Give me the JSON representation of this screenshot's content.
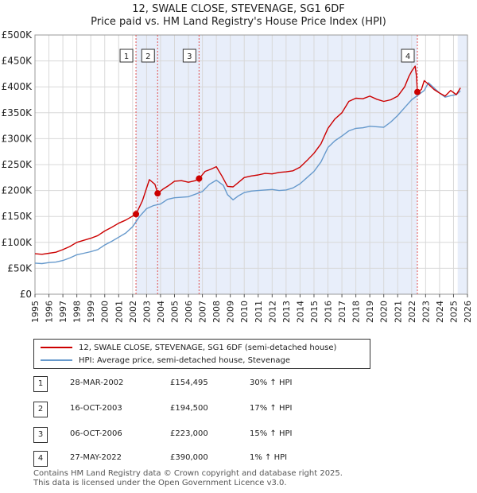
{
  "header": {
    "line1": "12, SWALE CLOSE, STEVENAGE, SG1 6DF",
    "line2": "Price paid vs. HM Land Registry's House Price Index (HPI)"
  },
  "chart_data": {
    "type": "line",
    "title": "12, SWALE CLOSE, STEVENAGE, SG1 6DF",
    "subtitle": "Price paid vs. HM Land Registry's House Price Index (HPI)",
    "xlabel": "",
    "ylabel": "",
    "xlim": [
      1995,
      2026
    ],
    "ylim": [
      0,
      500000
    ],
    "y_ticks": [
      0,
      50000,
      100000,
      150000,
      200000,
      250000,
      300000,
      350000,
      400000,
      450000,
      500000
    ],
    "y_tick_labels": [
      "£0",
      "£50K",
      "£100K",
      "£150K",
      "£200K",
      "£250K",
      "£300K",
      "£350K",
      "£400K",
      "£450K",
      "£500K"
    ],
    "x_tick_labels": [
      "1995",
      "1996",
      "1997",
      "1998",
      "1999",
      "2000",
      "2001",
      "2002",
      "2003",
      "2004",
      "2005",
      "2006",
      "2007",
      "2008",
      "2009",
      "2010",
      "2011",
      "2012",
      "2013",
      "2014",
      "2015",
      "2016",
      "2017",
      "2018",
      "2019",
      "2020",
      "2021",
      "2022",
      "2023",
      "2024",
      "2025",
      "2026"
    ],
    "grid": true,
    "colors": {
      "property": "#cc0000",
      "hpi": "#6699cc",
      "shade": "#e8eefa",
      "vline": "#e05050"
    },
    "series": [
      {
        "name": "12, SWALE CLOSE, STEVENAGE, SG1 6DF (semi-detached house)",
        "x": [
          1995.0,
          1995.5,
          1996.0,
          1996.5,
          1997.0,
          1997.5,
          1998.0,
          1998.5,
          1999.0,
          1999.5,
          2000.0,
          2000.5,
          2001.0,
          2001.5,
          2002.24,
          2002.7,
          2003.2,
          2003.6,
          2003.79,
          2004.2,
          2004.6,
          2005.0,
          2005.5,
          2006.0,
          2006.5,
          2006.76,
          2007.2,
          2007.6,
          2008.0,
          2008.4,
          2008.8,
          2009.2,
          2009.6,
          2010.0,
          2010.5,
          2011.0,
          2011.5,
          2012.0,
          2012.5,
          2013.0,
          2013.5,
          2014.0,
          2014.5,
          2015.0,
          2015.5,
          2016.0,
          2016.5,
          2017.0,
          2017.5,
          2018.0,
          2018.5,
          2019.0,
          2019.5,
          2020.0,
          2020.5,
          2021.0,
          2021.5,
          2021.8,
          2022.0,
          2022.25,
          2022.35,
          2022.41,
          2022.7,
          2022.9,
          2023.2,
          2023.6,
          2024.0,
          2024.4,
          2024.8,
          2025.2,
          2025.5
        ],
        "y": [
          78000,
          77000,
          79000,
          81000,
          86000,
          92000,
          100000,
          104000,
          108000,
          113000,
          122000,
          129000,
          137000,
          143000,
          154495,
          180000,
          221000,
          212000,
          194500,
          203000,
          210000,
          218000,
          219000,
          216000,
          219000,
          223000,
          237000,
          241000,
          246000,
          228000,
          208000,
          207000,
          216000,
          225000,
          228000,
          230000,
          233000,
          232000,
          235000,
          236000,
          238000,
          245000,
          258000,
          272000,
          290000,
          320000,
          338000,
          350000,
          372000,
          378000,
          377000,
          382000,
          376000,
          372000,
          375000,
          382000,
          400000,
          420000,
          430000,
          440000,
          420000,
          390000,
          395000,
          412000,
          405000,
          395000,
          388000,
          382000,
          393000,
          385000,
          398000
        ]
      },
      {
        "name": "HPI: Average price, semi-detached house, Stevenage",
        "x": [
          1995.0,
          1995.5,
          1996.0,
          1996.5,
          1997.0,
          1997.5,
          1998.0,
          1998.5,
          1999.0,
          1999.5,
          2000.0,
          2000.5,
          2001.0,
          2001.5,
          2002.0,
          2002.5,
          2003.0,
          2003.5,
          2004.0,
          2004.5,
          2005.0,
          2005.5,
          2006.0,
          2006.5,
          2007.0,
          2007.5,
          2008.0,
          2008.5,
          2008.8,
          2009.2,
          2009.6,
          2010.0,
          2010.5,
          2011.0,
          2011.5,
          2012.0,
          2012.5,
          2013.0,
          2013.5,
          2014.0,
          2014.5,
          2015.0,
          2015.5,
          2016.0,
          2016.5,
          2017.0,
          2017.5,
          2018.0,
          2018.5,
          2019.0,
          2019.5,
          2020.0,
          2020.5,
          2021.0,
          2021.5,
          2022.0,
          2022.5,
          2022.9,
          2023.2,
          2023.6,
          2024.0,
          2024.4,
          2024.8,
          2025.2,
          2025.5
        ],
        "y": [
          60000,
          59000,
          61000,
          62000,
          65000,
          70000,
          76000,
          79000,
          82000,
          86000,
          95000,
          102000,
          110000,
          118000,
          130000,
          150000,
          165000,
          171000,
          174000,
          183000,
          186000,
          187000,
          188000,
          193000,
          198000,
          212000,
          220000,
          210000,
          192000,
          182000,
          190000,
          196000,
          199000,
          200000,
          201000,
          202000,
          200000,
          201000,
          205000,
          213000,
          225000,
          237000,
          255000,
          283000,
          296000,
          305000,
          315000,
          320000,
          321000,
          324000,
          323000,
          322000,
          332000,
          345000,
          360000,
          375000,
          385000,
          393000,
          408000,
          398000,
          388000,
          380000,
          383000,
          385000,
          392000
        ]
      }
    ],
    "transactions": [
      {
        "id": "1",
        "x": 2002.24,
        "y": 154495
      },
      {
        "id": "2",
        "x": 2003.79,
        "y": 194500
      },
      {
        "id": "3",
        "x": 2006.76,
        "y": 223000
      },
      {
        "id": "4",
        "x": 2022.41,
        "y": 390000
      }
    ],
    "shaded_ranges": [
      [
        2002.24,
        2022.41
      ],
      [
        2025.3,
        2026.0
      ]
    ]
  },
  "legend": {
    "property_label": "12, SWALE CLOSE, STEVENAGE, SG1 6DF (semi-detached house)",
    "hpi_label": "HPI: Average price, semi-detached house, Stevenage"
  },
  "table": {
    "rows": [
      {
        "id": "1",
        "date": "28-MAR-2002",
        "price": "£154,495",
        "hpi": "30% ↑ HPI"
      },
      {
        "id": "2",
        "date": "16-OCT-2003",
        "price": "£194,500",
        "hpi": "17% ↑ HPI"
      },
      {
        "id": "3",
        "date": "06-OCT-2006",
        "price": "£223,000",
        "hpi": "15% ↑ HPI"
      },
      {
        "id": "4",
        "date": "27-MAY-2022",
        "price": "£390,000",
        "hpi": "1% ↑ HPI"
      }
    ]
  },
  "footer": {
    "line1": "Contains HM Land Registry data © Crown copyright and database right 2025.",
    "line2": "This data is licensed under the Open Government Licence v3.0."
  }
}
